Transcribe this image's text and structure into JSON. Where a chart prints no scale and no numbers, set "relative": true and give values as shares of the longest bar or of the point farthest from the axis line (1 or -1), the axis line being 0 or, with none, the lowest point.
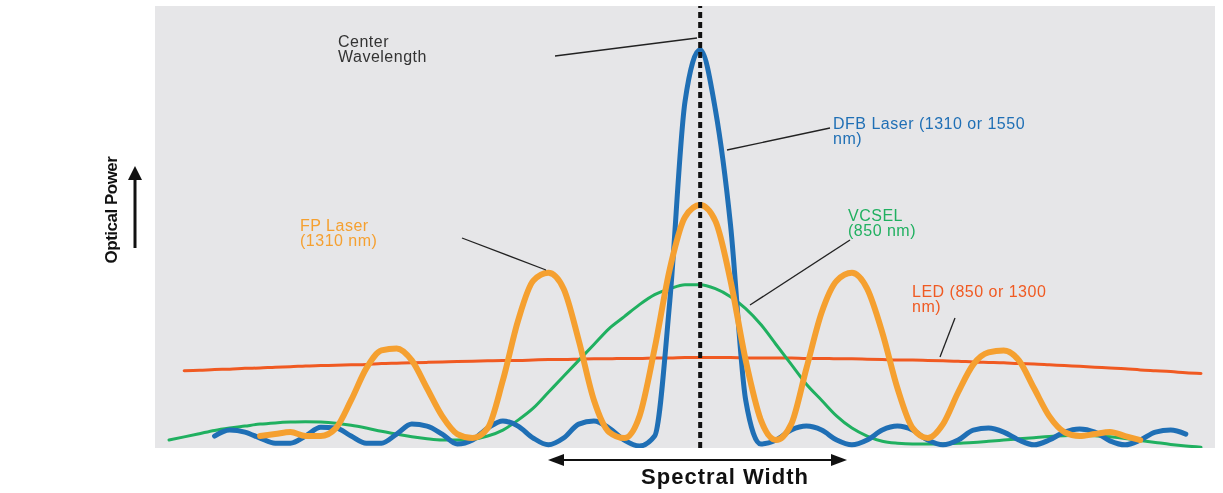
{
  "chart_data": {
    "type": "line",
    "relative": true,
    "xlabel": "Spectral Width",
    "ylabel": "Optical Power",
    "marker": "none",
    "line_style": "solid",
    "annotations": [
      "Center Wavelength"
    ],
    "categories": [
      null,
      null,
      null,
      null,
      null,
      null,
      null,
      null,
      null,
      null,
      null,
      null,
      null,
      null,
      null,
      null,
      null,
      null,
      null,
      null,
      null,
      null,
      null,
      null,
      null,
      null,
      null,
      null,
      null,
      null,
      null,
      null,
      null,
      null,
      null,
      null,
      null,
      null,
      null,
      null,
      null,
      null,
      null,
      null,
      null,
      null,
      null,
      null,
      null,
      null,
      null,
      null,
      null,
      null,
      null,
      null,
      null,
      null,
      null,
      null,
      null,
      null,
      null,
      null,
      null,
      null,
      null,
      null,
      null
    ],
    "series": [
      {
        "name": "LED (850 or 1300 nm)",
        "color": "#f05a22",
        "values": [
          null,
          0.194,
          0.195,
          0.197,
          0.198,
          0.2,
          0.201,
          0.203,
          0.204,
          0.206,
          0.207,
          0.208,
          0.209,
          0.21,
          0.212,
          0.213,
          0.214,
          0.215,
          0.216,
          0.217,
          0.218,
          0.219,
          0.22,
          0.22,
          0.221,
          0.222,
          0.222,
          0.223,
          0.224,
          0.224,
          0.225,
          0.225,
          0.226,
          0.226,
          0.227,
          0.227,
          0.227,
          0.227,
          0.226,
          0.226,
          0.226,
          0.226,
          0.225,
          0.225,
          0.224,
          0.224,
          0.223,
          0.222,
          0.221,
          0.221,
          0.22,
          0.219,
          0.218,
          0.216,
          0.215,
          0.214,
          0.212,
          0.211,
          0.209,
          0.207,
          0.205,
          0.203,
          0.201,
          0.199,
          0.196,
          0.194,
          0.192,
          0.189,
          0.187
        ]
      },
      {
        "name": "VCSEL (850 nm)",
        "color": "#20b060",
        "values": [
          0.02,
          0.028,
          0.036,
          0.044,
          0.05,
          0.055,
          0.06,
          0.063,
          0.065,
          0.066,
          0.065,
          0.062,
          0.057,
          0.05,
          0.042,
          0.035,
          0.028,
          0.023,
          0.02,
          0.02,
          0.022,
          0.03,
          0.045,
          0.07,
          0.1,
          0.14,
          0.18,
          0.22,
          0.26,
          0.3,
          0.33,
          0.36,
          0.385,
          0.4,
          0.41,
          0.41,
          0.4,
          0.38,
          0.35,
          0.31,
          0.26,
          0.21,
          0.16,
          0.12,
          0.08,
          0.05,
          0.03,
          0.017,
          0.012,
          0.01,
          0.01,
          0.01,
          0.012,
          0.014,
          0.017,
          0.02,
          0.023,
          0.026,
          0.029,
          0.031,
          0.032,
          0.031,
          0.028,
          0.024,
          0.019,
          0.014,
          0.009,
          0.005,
          0.002
        ]
      },
      {
        "name": "DFB Laser (1310 or 1550 nm)",
        "color": "#1f6fb5",
        "values": [
          null,
          null,
          null,
          0.03,
          0.045,
          0.04,
          0.025,
          0.012,
          0.012,
          0.03,
          0.052,
          0.05,
          0.03,
          0.012,
          0.012,
          0.035,
          0.06,
          0.055,
          0.035,
          0.01,
          0.02,
          0.05,
          0.068,
          0.055,
          0.025,
          0.008,
          0.025,
          0.06,
          0.068,
          0.05,
          0.02,
          0.005,
          0.03,
          0.37,
          0.87,
          1,
          0.85,
          0.56,
          0.12,
          0.01,
          0.02,
          0.045,
          0.055,
          0.045,
          0.02,
          0.008,
          0.02,
          0.045,
          0.055,
          0.045,
          0.02,
          0.008,
          0.02,
          0.045,
          0.05,
          0.04,
          0.02,
          0.008,
          0.02,
          0.04,
          0.048,
          0.04,
          0.018,
          0.008,
          0.02,
          0.04,
          0.045,
          0.035,
          null
        ]
      },
      {
        "name": "FP Laser (1310 nm)",
        "color": "#f5a030",
        "values": [
          null,
          null,
          null,
          null,
          null,
          null,
          0.03,
          0.035,
          0.04,
          0.03,
          0.03,
          0.05,
          0.12,
          0.2,
          0.245,
          0.25,
          0.22,
          0.15,
          0.08,
          0.035,
          0.025,
          0.05,
          0.17,
          0.32,
          0.42,
          0.44,
          0.4,
          0.27,
          0.12,
          0.04,
          0.025,
          0.08,
          0.25,
          0.45,
          0.58,
          0.61,
          0.57,
          0.42,
          0.22,
          0.07,
          0.02,
          0.06,
          0.2,
          0.34,
          0.42,
          0.44,
          0.4,
          0.29,
          0.15,
          0.05,
          0.025,
          0.06,
          0.14,
          0.21,
          0.24,
          0.245,
          0.22,
          0.15,
          0.08,
          0.04,
          0.03,
          0.035,
          0.04,
          0.03,
          0.02,
          null,
          null,
          null,
          null
        ]
      }
    ]
  }
}
